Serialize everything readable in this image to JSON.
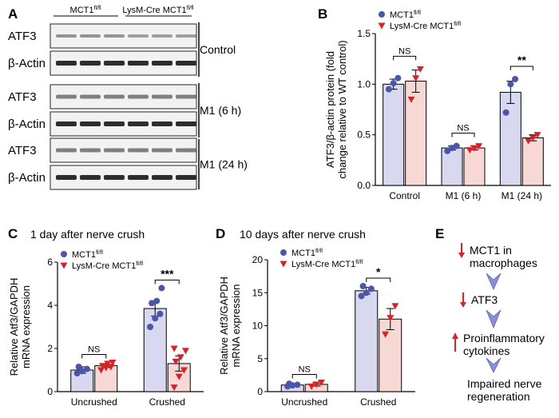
{
  "figure": {
    "panel_labels": [
      "A",
      "B",
      "C",
      "D",
      "E"
    ],
    "legend": {
      "wt": "MCT1",
      "ko_prefix": "LysM-Cre MCT1",
      "superscript": "fl/fl"
    },
    "colors": {
      "wt_marker": "#4b56a8",
      "wt_bar": "#d8d8f0",
      "ko_marker": "#d4242a",
      "ko_bar": "#f8d8d4"
    }
  },
  "blot": {
    "group_wt": "MCT1",
    "group_ko": "LysM-Cre MCT1",
    "superscript": "fl/fl",
    "rows": [
      {
        "protein": "ATF3",
        "condition": "Control"
      },
      {
        "protein": "β-Actin"
      },
      {
        "protein": "ATF3",
        "condition": "M1 (6 h)"
      },
      {
        "protein": "β-Actin"
      },
      {
        "protein": "ATF3",
        "condition": "M1 (24 h)"
      },
      {
        "protein": "β-Actin"
      }
    ]
  },
  "flow": {
    "steps": [
      {
        "line1": "MCT1 in",
        "line2": "macrophages",
        "arrow": "down"
      },
      {
        "line1": "ATF3",
        "line2": "",
        "arrow": "down"
      },
      {
        "line1": "Proinflammatory",
        "line2": "cytokines",
        "arrow": "up"
      },
      {
        "line1": "Impaired nerve",
        "line2": "regeneration",
        "arrow": ""
      }
    ]
  },
  "chart_data": [
    {
      "panel": "B",
      "type": "bar",
      "title": "",
      "ylabel": "ATF3/β-actin protein (fold change relative to WT control)",
      "ylabel_lines": [
        "ATF3/β-actin protein (fold",
        "change relative to WT control)"
      ],
      "ylim": [
        0,
        1.5
      ],
      "yticks": [
        0,
        0.5,
        1.0,
        1.5
      ],
      "ytick_labels": [
        "0.0",
        "0.5",
        "1.0",
        "1.5"
      ],
      "categories": [
        "Control",
        "M1 (6 h)",
        "M1 (24 h)"
      ],
      "series": [
        {
          "name": "MCT1 fl/fl",
          "values": [
            1.0,
            0.37,
            0.92
          ],
          "errors": [
            0.05,
            0.02,
            0.11
          ],
          "points": [
            [
              0.95,
              1.01,
              1.06
            ],
            [
              0.34,
              0.37,
              0.39
            ],
            [
              0.72,
              1.0,
              1.05
            ]
          ]
        },
        {
          "name": "LysM-Cre MCT1 fl/fl",
          "values": [
            1.03,
            0.37,
            0.47
          ],
          "errors": [
            0.11,
            0.02,
            0.03
          ],
          "points": [
            [
              0.85,
              1.06,
              1.15
            ],
            [
              0.35,
              0.37,
              0.39
            ],
            [
              0.44,
              0.47,
              0.5
            ]
          ]
        }
      ],
      "significance": [
        "NS",
        "NS",
        "**"
      ]
    },
    {
      "panel": "C",
      "type": "bar",
      "title": "1 day after nerve crush",
      "ylabel_lines": [
        "Relative Atf3/GAPDH",
        "mRNA expression"
      ],
      "ylim": [
        0,
        6
      ],
      "yticks": [
        0,
        2,
        4,
        6
      ],
      "ytick_labels": [
        "0",
        "2",
        "4",
        "6"
      ],
      "categories": [
        "Uncrushed",
        "Crushed"
      ],
      "series": [
        {
          "name": "MCT1 fl/fl",
          "values": [
            1.0,
            3.85
          ],
          "errors": [
            0.15,
            0.35
          ],
          "points": [
            [
              0.85,
              0.95,
              1.05,
              1.15
            ],
            [
              3.0,
              3.4,
              3.6,
              4.1,
              4.2,
              4.8
            ]
          ]
        },
        {
          "name": "LysM-Cre MCT1 fl/fl",
          "values": [
            1.2,
            1.3
          ],
          "errors": [
            0.08,
            0.35
          ],
          "points": [
            [
              1.0,
              1.1,
              1.15,
              1.2,
              1.3,
              1.35
            ],
            [
              0.2,
              0.7,
              1.0,
              1.4,
              1.6,
              1.9,
              2.0
            ]
          ]
        }
      ],
      "significance": [
        "NS",
        "***"
      ]
    },
    {
      "panel": "D",
      "type": "bar",
      "title": "10 days after nerve crush",
      "ylabel_lines": [
        "Relative Atf3/GAPDH",
        "mRNA expression"
      ],
      "ylim": [
        0,
        20
      ],
      "yticks": [
        0,
        5,
        10,
        15,
        20
      ],
      "ytick_labels": [
        "0",
        "5",
        "10",
        "15",
        "20"
      ],
      "categories": [
        "Uncrushed",
        "Crushed"
      ],
      "series": [
        {
          "name": "MCT1 fl/fl",
          "values": [
            1.0,
            15.3
          ],
          "errors": [
            0.1,
            0.5
          ],
          "points": [
            [
              0.8,
              0.95,
              1.05,
              1.2
            ],
            [
              14.5,
              15.0,
              15.6,
              16.0
            ]
          ]
        },
        {
          "name": "LysM-Cre MCT1 fl/fl",
          "values": [
            1.1,
            11.0
          ],
          "errors": [
            0.25,
            1.6
          ],
          "points": [
            [
              0.8,
              1.1,
              1.4
            ],
            [
              8.7,
              11.2,
              13.0
            ]
          ]
        }
      ],
      "significance": [
        "NS",
        "*"
      ]
    }
  ]
}
